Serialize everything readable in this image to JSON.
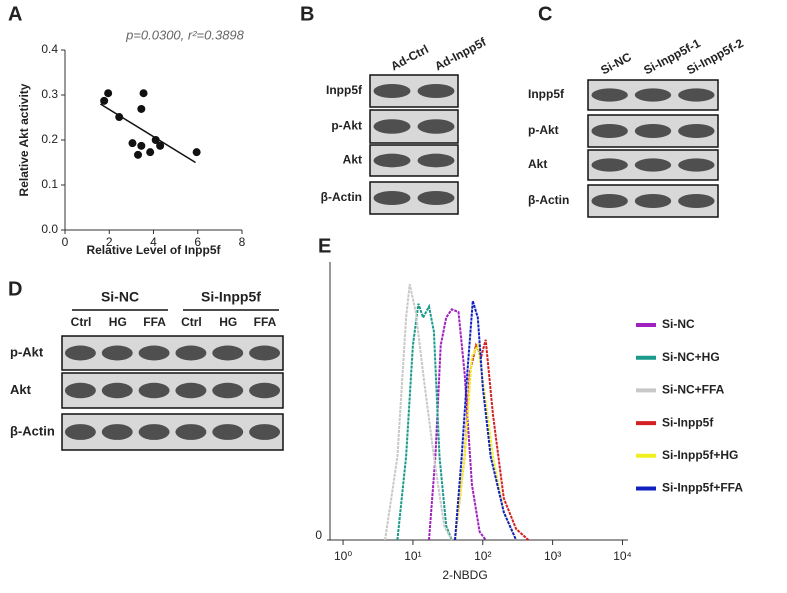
{
  "panels": {
    "A": {
      "label": "A",
      "type": "scatter",
      "title": "p=0.0300, r²=0.3898",
      "xlabel": "Relative Level of Inpp5f",
      "ylabel": "Relative Akt activity",
      "x": [
        1.77,
        1.95,
        2.45,
        3.05,
        3.3,
        3.45,
        3.55,
        3.45,
        3.85,
        4.1,
        4.3,
        5.95
      ],
      "y": [
        0.287,
        0.304,
        0.251,
        0.193,
        0.167,
        0.269,
        0.304,
        0.187,
        0.173,
        0.2,
        0.187,
        0.173
      ],
      "fit": {
        "x": [
          1.6,
          5.9
        ],
        "y": [
          0.28,
          0.15
        ]
      },
      "xlim": [
        0,
        8
      ],
      "xticks": [
        0,
        2,
        4,
        6,
        8
      ],
      "ylim": [
        0,
        0.4
      ],
      "yticks": [
        {
          "value": 0,
          "label": "0.0"
        },
        {
          "value": 0.1,
          "label": "0.1"
        },
        {
          "value": 0.2,
          "label": "0.2"
        },
        {
          "value": 0.3,
          "label": "0.3"
        },
        {
          "value": 0.4,
          "label": "0.4"
        }
      ]
    },
    "B": {
      "label": "B",
      "columns": [
        "Ad-Ctrl",
        "Ad-Inpp5f"
      ],
      "rows": [
        "Inpp5f",
        "p-Akt",
        "Akt",
        "β-Actin"
      ]
    },
    "C": {
      "label": "C",
      "columns": [
        "Si-NC",
        "Si-Inpp5f-1",
        "Si-Inpp5f-2"
      ],
      "rows": [
        "Inpp5f",
        "p-Akt",
        "Akt",
        "β-Actin"
      ]
    },
    "D": {
      "label": "D",
      "groups": [
        "Si-NC",
        "Si-Inpp5f"
      ],
      "columns": [
        "Ctrl",
        "HG",
        "FFA",
        "Ctrl",
        "HG",
        "FFA"
      ],
      "rows": [
        "p-Akt",
        "Akt",
        "β-Actin"
      ]
    },
    "E": {
      "label": "E",
      "type": "line",
      "xlabel": "2-NBDG",
      "log_x": true,
      "xlim": [
        0.65,
        12000
      ],
      "xticks": [
        {
          "value": 1,
          "label": "10⁰"
        },
        {
          "value": 10,
          "label": "10¹"
        },
        {
          "value": 100,
          "label": "10²"
        },
        {
          "value": 1000,
          "label": "10³"
        },
        {
          "value": 10000,
          "label": "10⁴"
        }
      ],
      "ylim": [
        0,
        100
      ],
      "yticks": [
        0
      ],
      "series": [
        {
          "name": "Si-NC",
          "color": "#a020c0",
          "x": [
            17,
            21,
            25,
            30,
            36,
            45,
            55,
            70,
            90,
            110
          ],
          "values": [
            0,
            30,
            70,
            80,
            83,
            82,
            60,
            20,
            3,
            0
          ]
        },
        {
          "name": "Si-NC+HG",
          "color": "#1a9a8a",
          "x": [
            6,
            8,
            10,
            12,
            14,
            17,
            20,
            24,
            30,
            36
          ],
          "values": [
            0,
            30,
            70,
            85,
            80,
            84,
            75,
            30,
            5,
            0
          ]
        },
        {
          "name": "Si-NC+FFA",
          "color": "#c8c8c8",
          "x": [
            4,
            6,
            8,
            9,
            11,
            14,
            20,
            28,
            36
          ],
          "values": [
            0,
            30,
            80,
            92,
            82,
            60,
            30,
            5,
            0
          ]
        },
        {
          "name": "Si-Inpp5f",
          "color": "#d42020",
          "x": [
            40,
            55,
            65,
            80,
            95,
            110,
            140,
            200,
            300,
            450
          ],
          "values": [
            0,
            30,
            60,
            70,
            66,
            72,
            45,
            15,
            4,
            0
          ]
        },
        {
          "name": "Si-Inpp5f+HG",
          "color": "#f0f020",
          "x": [
            40,
            55,
            70,
            85,
            110,
            140,
            200,
            300
          ],
          "values": [
            0,
            30,
            66,
            70,
            50,
            30,
            10,
            0
          ]
        },
        {
          "name": "Si-Inpp5f+FFA",
          "color": "#1020c0",
          "x": [
            40,
            50,
            60,
            72,
            85,
            100,
            130,
            200,
            300
          ],
          "values": [
            0,
            30,
            60,
            86,
            80,
            55,
            30,
            10,
            0
          ]
        }
      ]
    }
  }
}
